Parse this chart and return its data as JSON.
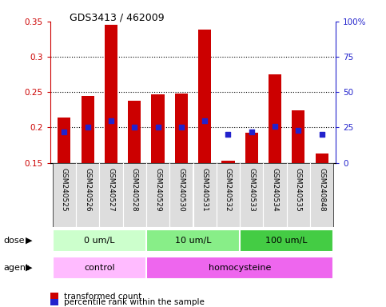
{
  "title": "GDS3413 / 462009",
  "samples": [
    "GSM240525",
    "GSM240526",
    "GSM240527",
    "GSM240528",
    "GSM240529",
    "GSM240530",
    "GSM240531",
    "GSM240532",
    "GSM240533",
    "GSM240534",
    "GSM240535",
    "GSM240848"
  ],
  "bar_bottom": 0.15,
  "bar_top": [
    0.214,
    0.245,
    0.345,
    0.238,
    0.247,
    0.248,
    0.339,
    0.153,
    0.193,
    0.275,
    0.224,
    0.163
  ],
  "percentile_vals": [
    22,
    25,
    30,
    25,
    25,
    25,
    30,
    20,
    22,
    26,
    23,
    20
  ],
  "ylim_left": [
    0.15,
    0.35
  ],
  "ylim_right": [
    0,
    100
  ],
  "yticks_left": [
    0.15,
    0.2,
    0.25,
    0.3,
    0.35
  ],
  "yticks_right": [
    0,
    25,
    50,
    75,
    100
  ],
  "ytick_labels_right": [
    "0",
    "25",
    "50",
    "75",
    "100%"
  ],
  "bar_color": "#cc0000",
  "dot_color": "#2222cc",
  "bar_width": 0.55,
  "dose_groups": [
    {
      "label": "0 um/L",
      "start": 0,
      "end": 4,
      "color": "#ccffcc"
    },
    {
      "label": "10 um/L",
      "start": 4,
      "end": 8,
      "color": "#88ee88"
    },
    {
      "label": "100 um/L",
      "start": 8,
      "end": 12,
      "color": "#44cc44"
    }
  ],
  "agent_groups": [
    {
      "label": "control",
      "start": 0,
      "end": 4,
      "color": "#ffbbff"
    },
    {
      "label": "homocysteine",
      "start": 4,
      "end": 12,
      "color": "#ee66ee"
    }
  ],
  "dose_label": "dose",
  "agent_label": "agent",
  "legend_bar_label": "transformed count",
  "legend_dot_label": "percentile rank within the sample",
  "bg_label_color": "#dddddd",
  "grid_linestyle": ":",
  "grid_linewidth": 0.8
}
